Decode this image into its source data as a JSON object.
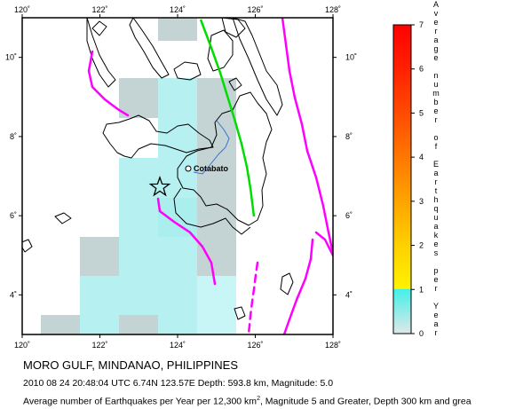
{
  "title": "MORO GULF, MINDANAO, PHILIPPINES",
  "event_line": "2010 08 24 20:48:04 UTC 6.74N 123.57E Depth: 593.8 km, Magnitude: 5.0",
  "caption_parts": {
    "before": "Average number of Earthquakes per Year per 12,300 km",
    "sup": "2",
    "after": ", Magnitude 5 and Greater, Depth 300 km and grea"
  },
  "map": {
    "lon_ticks": [
      "120˚",
      "122˚",
      "124˚",
      "126˚",
      "128˚"
    ],
    "lat_ticks": [
      "4˚",
      "6˚",
      "8˚",
      "10˚"
    ],
    "lon_range": [
      120,
      128
    ],
    "lat_range": [
      3,
      11
    ],
    "city": "Cotabato",
    "epicenter": {
      "lat": 6.74,
      "lon": 123.57
    },
    "colors": {
      "cell_gray": "#c4d4d4",
      "cell_cyan": "#b6f0f0",
      "cell_cyan_light": "#c8f6f6",
      "coast": "#000000",
      "plate_boundary": "#ff00ff",
      "fault": "#00dd00",
      "river": "#3a6fd8"
    }
  },
  "colorbar": {
    "ticks": [
      "0",
      "1",
      "2",
      "3",
      "4",
      "5",
      "6",
      "7"
    ],
    "title_lines": [
      "A",
      "v",
      "e",
      "r",
      "a",
      "g",
      "e",
      "",
      "n",
      "u",
      "m",
      "b",
      "e",
      "r",
      "",
      "o",
      "f",
      "",
      "E",
      "a",
      "r",
      "t",
      "h",
      "q",
      "u",
      "a",
      "k",
      "e",
      "s",
      "",
      "p",
      "e",
      "r",
      "",
      "Y",
      "e",
      "a",
      "r"
    ]
  }
}
